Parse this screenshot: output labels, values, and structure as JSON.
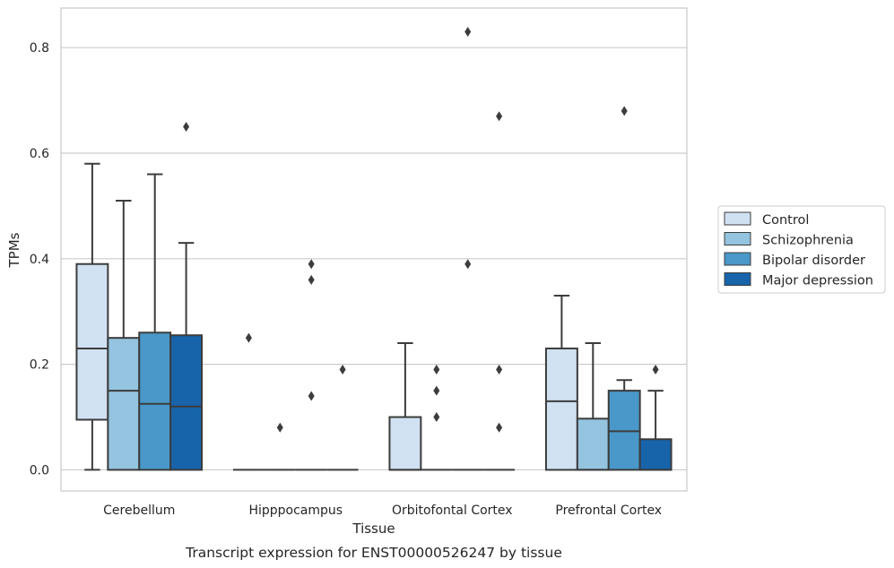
{
  "chart_data": {
    "type": "box",
    "title": "",
    "caption": "Transcript expression for ENST00000526247 by tissue",
    "xlabel": "Tissue",
    "ylabel": "TPMs",
    "ylim": [
      -0.04,
      0.875
    ],
    "yticks": [
      "0.0",
      "0.2",
      "0.4",
      "0.6",
      "0.8"
    ],
    "grid": "horizontal",
    "legend_position": "right",
    "categories": [
      "Cerebellum",
      "Hipppocampus",
      "Orbitofontal Cortex",
      "Prefrontal Cortex"
    ],
    "series": [
      {
        "name": "Control",
        "color": "#d0e1f2",
        "boxes": [
          {
            "min": 0,
            "q1": 0.095,
            "median": 0.23,
            "q3": 0.39,
            "max": 0.58,
            "outliers": []
          },
          {
            "min": 0,
            "q1": 0,
            "median": 0,
            "q3": 0,
            "max": 0,
            "outliers": [
              0.25
            ]
          },
          {
            "min": 0,
            "q1": 0,
            "median": 0,
            "q3": 0.1,
            "max": 0.24,
            "outliers": []
          },
          {
            "min": 0,
            "q1": 0,
            "median": 0.13,
            "q3": 0.23,
            "max": 0.33,
            "outliers": []
          }
        ]
      },
      {
        "name": "Schizophrenia",
        "color": "#94c4df",
        "boxes": [
          {
            "min": 0,
            "q1": 0,
            "median": 0.15,
            "q3": 0.25,
            "max": 0.51,
            "outliers": []
          },
          {
            "min": 0,
            "q1": 0,
            "median": 0,
            "q3": 0,
            "max": 0,
            "outliers": [
              0.08
            ]
          },
          {
            "min": 0,
            "q1": 0,
            "median": 0,
            "q3": 0,
            "max": 0,
            "outliers": [
              0.19,
              0.15,
              0.1
            ]
          },
          {
            "min": 0,
            "q1": 0,
            "median": 0,
            "q3": 0.097,
            "max": 0.24,
            "outliers": []
          }
        ]
      },
      {
        "name": "Bipolar disorder",
        "color": "#4a98c9",
        "boxes": [
          {
            "min": 0,
            "q1": 0,
            "median": 0.125,
            "q3": 0.26,
            "max": 0.56,
            "outliers": []
          },
          {
            "min": 0,
            "q1": 0,
            "median": 0,
            "q3": 0,
            "max": 0,
            "outliers": [
              0.39,
              0.36,
              0.14
            ]
          },
          {
            "min": 0,
            "q1": 0,
            "median": 0,
            "q3": 0,
            "max": 0,
            "outliers": [
              0.83,
              0.39
            ]
          },
          {
            "min": 0,
            "q1": 0,
            "median": 0.073,
            "q3": 0.15,
            "max": 0.17,
            "outliers": [
              0.68
            ]
          }
        ]
      },
      {
        "name": "Major depression",
        "color": "#1764ab",
        "boxes": [
          {
            "min": 0,
            "q1": 0,
            "median": 0.12,
            "q3": 0.255,
            "max": 0.43,
            "outliers": [
              0.65
            ]
          },
          {
            "min": 0,
            "q1": 0,
            "median": 0,
            "q3": 0,
            "max": 0,
            "outliers": [
              0.19
            ]
          },
          {
            "min": 0,
            "q1": 0,
            "median": 0,
            "q3": 0,
            "max": 0,
            "outliers": [
              0.67,
              0.19,
              0.08
            ]
          },
          {
            "min": 0,
            "q1": 0,
            "median": 0,
            "q3": 0.058,
            "max": 0.15,
            "outliers": [
              0.19
            ]
          }
        ]
      }
    ]
  }
}
